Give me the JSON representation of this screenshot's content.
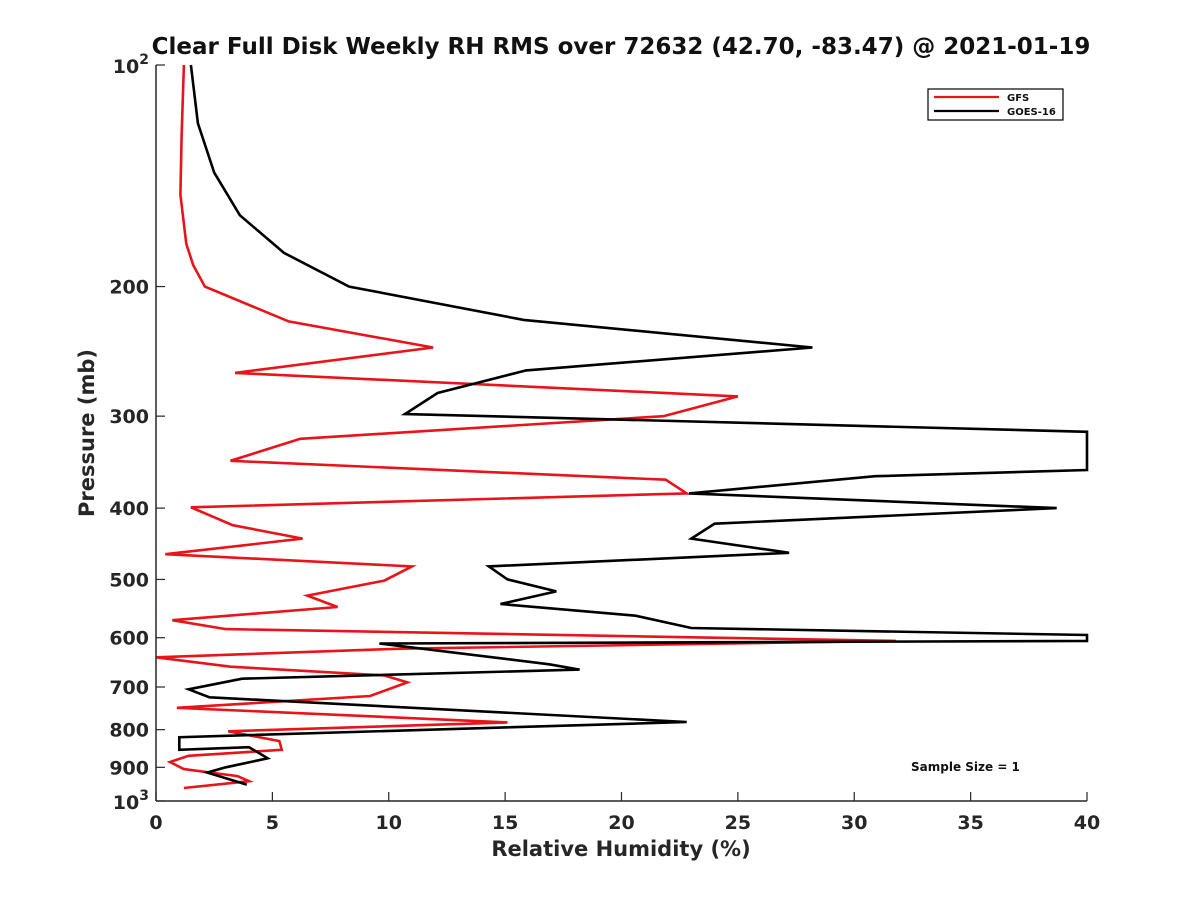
{
  "chart_data": {
    "type": "line",
    "title": "Clear Full Disk Weekly RH RMS over 72632 (42.70, -83.47) @ 2021-01-19",
    "xlabel": "Relative Humidity (%)",
    "ylabel": "Pressure (mb)",
    "xlim": [
      0,
      40
    ],
    "ylim": [
      100,
      1000
    ],
    "y_scale": "log",
    "y_reversed": true,
    "x_ticks": [
      "0",
      "5",
      "10",
      "15",
      "20",
      "25",
      "30",
      "35",
      "40"
    ],
    "y_ticks": [
      {
        "value": 100,
        "base": "10",
        "exp": "2"
      },
      {
        "value": 200,
        "label": "200"
      },
      {
        "value": 300,
        "label": "300"
      },
      {
        "value": 400,
        "label": "400"
      },
      {
        "value": 500,
        "label": "500"
      },
      {
        "value": 600,
        "label": "600"
      },
      {
        "value": 700,
        "label": "700"
      },
      {
        "value": 800,
        "label": "800"
      },
      {
        "value": 900,
        "label": "900"
      },
      {
        "value": 1000,
        "base": "10",
        "exp": "3"
      }
    ],
    "grid": false,
    "legend_position": "top-right",
    "annotation": "Sample Size = 1",
    "series": [
      {
        "name": "GFS",
        "color": "#e8141a",
        "points": [
          [
            1.2,
            100
          ],
          [
            1.1,
            125
          ],
          [
            1.05,
            150
          ],
          [
            1.3,
            175
          ],
          [
            1.6,
            187
          ],
          [
            2.1,
            200
          ],
          [
            5.7,
            223
          ],
          [
            11.9,
            242
          ],
          [
            3.4,
            262
          ],
          [
            25.0,
            282
          ],
          [
            21.8,
            300
          ],
          [
            6.2,
            322
          ],
          [
            3.2,
            345
          ],
          [
            21.9,
            366
          ],
          [
            22.8,
            382
          ],
          [
            1.5,
            399
          ],
          [
            3.3,
            422
          ],
          [
            6.3,
            440
          ],
          [
            0.4,
            462
          ],
          [
            11.0,
            480
          ],
          [
            9.8,
            502
          ],
          [
            6.5,
            526
          ],
          [
            7.8,
            545
          ],
          [
            0.7,
            568
          ],
          [
            3.0,
            584
          ],
          [
            31.8,
            606
          ],
          [
            10.5,
            621
          ],
          [
            0.0,
            638
          ],
          [
            3.2,
            657
          ],
          [
            9.8,
            675
          ],
          [
            10.8,
            690
          ],
          [
            9.2,
            720
          ],
          [
            0.9,
            747
          ],
          [
            15.1,
            782
          ],
          [
            3.1,
            804
          ],
          [
            5.3,
            829
          ],
          [
            5.4,
            852
          ],
          [
            1.4,
            868
          ],
          [
            0.6,
            885
          ],
          [
            1.2,
            905
          ],
          [
            3.5,
            925
          ],
          [
            4.0,
            940
          ],
          [
            1.2,
            960
          ]
        ]
      },
      {
        "name": "GOES-16",
        "color": "#000000",
        "points": [
          [
            1.5,
            100
          ],
          [
            1.8,
            120
          ],
          [
            2.5,
            140
          ],
          [
            3.6,
            160
          ],
          [
            5.5,
            180
          ],
          [
            8.3,
            200
          ],
          [
            15.8,
            222
          ],
          [
            28.2,
            242
          ],
          [
            15.9,
            260
          ],
          [
            12.1,
            279
          ],
          [
            10.7,
            298
          ],
          [
            40.0,
            315
          ],
          [
            40.0,
            355
          ],
          [
            30.9,
            362
          ],
          [
            22.9,
            382
          ],
          [
            38.7,
            400
          ],
          [
            24.0,
            420
          ],
          [
            23.0,
            440
          ],
          [
            27.2,
            460
          ],
          [
            14.3,
            480
          ],
          [
            15.1,
            500
          ],
          [
            17.2,
            519
          ],
          [
            14.8,
            540
          ],
          [
            20.6,
            560
          ],
          [
            23.0,
            582
          ],
          [
            40.0,
            595
          ],
          [
            40.0,
            606
          ],
          [
            9.6,
            611
          ],
          [
            16.9,
            652
          ],
          [
            18.2,
            663
          ],
          [
            3.7,
            682
          ],
          [
            1.4,
            705
          ],
          [
            2.3,
            723
          ],
          [
            22.8,
            781
          ],
          [
            1.0,
            819
          ],
          [
            1.0,
            852
          ],
          [
            4.0,
            845
          ],
          [
            4.8,
            875
          ],
          [
            3.0,
            900
          ],
          [
            2.2,
            915
          ],
          [
            3.9,
            950
          ]
        ]
      }
    ]
  }
}
